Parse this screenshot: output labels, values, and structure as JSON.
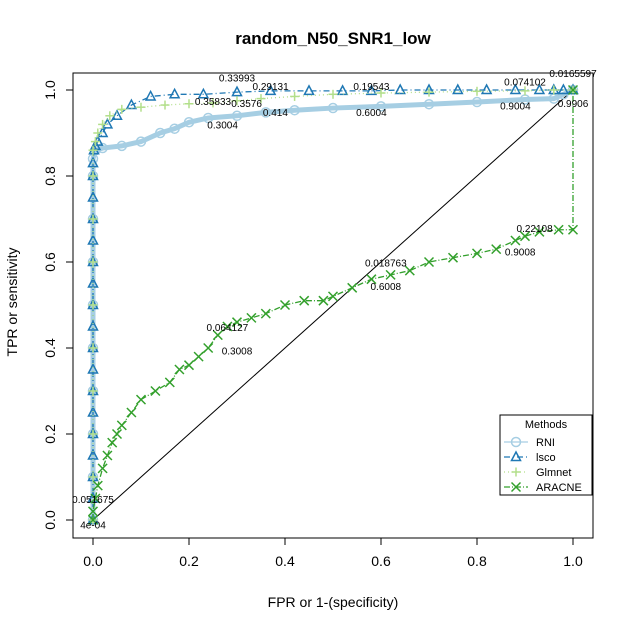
{
  "chart_data": {
    "type": "line",
    "title": "random_N50_SNR1_low",
    "xlabel": "FPR or 1-(specificity)",
    "ylabel": "TPR or sensitivity",
    "xlim": [
      0,
      1
    ],
    "ylim": [
      0,
      1
    ],
    "x_ticks": [
      0.0,
      0.2,
      0.4,
      0.6,
      0.8,
      1.0
    ],
    "y_ticks": [
      0.0,
      0.2,
      0.4,
      0.6,
      0.8,
      1.0
    ],
    "x_tick_labels": [
      "0.0",
      "0.2",
      "0.4",
      "0.6",
      "0.8",
      "1.0"
    ],
    "y_tick_labels": [
      "0.0",
      "0.2",
      "0.4",
      "0.6",
      "0.8",
      "1.0"
    ],
    "diagonal": true,
    "legend": {
      "title": "Methods",
      "position": "bottom-right",
      "entries": [
        "RNI",
        "lsco",
        "Glmnet",
        "ARACNE"
      ]
    },
    "series": [
      {
        "name": "RNI",
        "color": "#a6cee3",
        "marker": "circle",
        "dash": "solid",
        "points": [
          [
            0.0,
            0.0
          ],
          [
            0.0,
            0.1
          ],
          [
            0.0,
            0.2
          ],
          [
            0.0,
            0.3
          ],
          [
            0.0,
            0.4
          ],
          [
            0.0,
            0.5
          ],
          [
            0.0,
            0.6
          ],
          [
            0.0,
            0.7
          ],
          [
            0.0,
            0.8
          ],
          [
            0.0,
            0.84
          ],
          [
            0.005,
            0.86
          ],
          [
            0.02,
            0.865
          ],
          [
            0.06,
            0.87
          ],
          [
            0.1,
            0.88
          ],
          [
            0.14,
            0.9
          ],
          [
            0.17,
            0.91
          ],
          [
            0.2,
            0.925
          ],
          [
            0.24,
            0.935
          ],
          [
            0.3,
            0.94
          ],
          [
            0.36,
            0.948
          ],
          [
            0.42,
            0.953
          ],
          [
            0.5,
            0.958
          ],
          [
            0.6,
            0.962
          ],
          [
            0.7,
            0.967
          ],
          [
            0.8,
            0.972
          ],
          [
            0.9,
            0.978
          ],
          [
            0.96,
            0.98
          ],
          [
            0.98,
            0.99
          ],
          [
            1.0,
            1.0
          ]
        ]
      },
      {
        "name": "lsco",
        "color": "#1f78b4",
        "marker": "triangle",
        "dash": "6,3,1,3",
        "points": [
          [
            0.0,
            0.0
          ],
          [
            0.0,
            0.05
          ],
          [
            0.0,
            0.1
          ],
          [
            0.0,
            0.15
          ],
          [
            0.0,
            0.2
          ],
          [
            0.0,
            0.25
          ],
          [
            0.0,
            0.3
          ],
          [
            0.0,
            0.35
          ],
          [
            0.0,
            0.4
          ],
          [
            0.0,
            0.45
          ],
          [
            0.0,
            0.5
          ],
          [
            0.0,
            0.55
          ],
          [
            0.0,
            0.6
          ],
          [
            0.0,
            0.65
          ],
          [
            0.0,
            0.7
          ],
          [
            0.0,
            0.75
          ],
          [
            0.0,
            0.8
          ],
          [
            0.0,
            0.83
          ],
          [
            0.002,
            0.86
          ],
          [
            0.005,
            0.87
          ],
          [
            0.01,
            0.88
          ],
          [
            0.02,
            0.9
          ],
          [
            0.03,
            0.92
          ],
          [
            0.05,
            0.94
          ],
          [
            0.08,
            0.965
          ],
          [
            0.12,
            0.985
          ],
          [
            0.17,
            0.99
          ],
          [
            0.23,
            0.99
          ],
          [
            0.3,
            0.995
          ],
          [
            0.37,
            0.998
          ],
          [
            0.45,
            0.998
          ],
          [
            0.52,
            0.998
          ],
          [
            0.58,
            0.998
          ],
          [
            0.64,
            1.0
          ],
          [
            0.7,
            1.0
          ],
          [
            0.76,
            1.0
          ],
          [
            0.82,
            1.0
          ],
          [
            0.88,
            1.0
          ],
          [
            0.93,
            1.0
          ],
          [
            0.96,
            1.0
          ],
          [
            0.98,
            1.0
          ],
          [
            1.0,
            1.0
          ]
        ]
      },
      {
        "name": "Glmnet",
        "color": "#b2df8a",
        "marker": "plus",
        "dash": "1,3",
        "points": [
          [
            0.0,
            0.0
          ],
          [
            0.0,
            0.1
          ],
          [
            0.0,
            0.2
          ],
          [
            0.0,
            0.3
          ],
          [
            0.0,
            0.4
          ],
          [
            0.0,
            0.5
          ],
          [
            0.0,
            0.6
          ],
          [
            0.0,
            0.7
          ],
          [
            0.0,
            0.8
          ],
          [
            0.0,
            0.86
          ],
          [
            0.005,
            0.88
          ],
          [
            0.01,
            0.9
          ],
          [
            0.02,
            0.92
          ],
          [
            0.035,
            0.94
          ],
          [
            0.06,
            0.955
          ],
          [
            0.1,
            0.96
          ],
          [
            0.15,
            0.965
          ],
          [
            0.2,
            0.968
          ],
          [
            0.25,
            0.97
          ],
          [
            0.3,
            0.975
          ],
          [
            0.35,
            0.98
          ],
          [
            0.42,
            0.985
          ],
          [
            0.5,
            0.99
          ],
          [
            0.6,
            0.993
          ],
          [
            0.7,
            0.995
          ],
          [
            0.8,
            0.997
          ],
          [
            0.9,
            0.998
          ],
          [
            0.96,
            1.0
          ],
          [
            1.0,
            1.0
          ]
        ]
      },
      {
        "name": "ARACNE",
        "color": "#33a02c",
        "marker": "cross",
        "dash": "6,2,1,2",
        "points": [
          [
            0.0,
            0.0
          ],
          [
            0.0,
            0.02
          ],
          [
            0.005,
            0.05
          ],
          [
            0.01,
            0.08
          ],
          [
            0.02,
            0.12
          ],
          [
            0.03,
            0.15
          ],
          [
            0.04,
            0.18
          ],
          [
            0.05,
            0.2
          ],
          [
            0.06,
            0.22
          ],
          [
            0.08,
            0.25
          ],
          [
            0.1,
            0.28
          ],
          [
            0.13,
            0.3
          ],
          [
            0.16,
            0.32
          ],
          [
            0.18,
            0.35
          ],
          [
            0.2,
            0.36
          ],
          [
            0.22,
            0.38
          ],
          [
            0.24,
            0.4
          ],
          [
            0.26,
            0.43
          ],
          [
            0.28,
            0.45
          ],
          [
            0.3,
            0.46
          ],
          [
            0.33,
            0.47
          ],
          [
            0.36,
            0.48
          ],
          [
            0.4,
            0.5
          ],
          [
            0.44,
            0.51
          ],
          [
            0.48,
            0.51
          ],
          [
            0.5,
            0.52
          ],
          [
            0.54,
            0.54
          ],
          [
            0.58,
            0.56
          ],
          [
            0.62,
            0.57
          ],
          [
            0.66,
            0.58
          ],
          [
            0.7,
            0.6
          ],
          [
            0.75,
            0.61
          ],
          [
            0.8,
            0.62
          ],
          [
            0.84,
            0.63
          ],
          [
            0.88,
            0.65
          ],
          [
            0.9,
            0.66
          ],
          [
            0.93,
            0.67
          ],
          [
            0.97,
            0.675
          ],
          [
            1.0,
            0.675
          ],
          [
            1.0,
            1.0
          ]
        ]
      }
    ],
    "annotations": [
      {
        "text": "0.33993",
        "x": 0.3,
        "y": 1.02
      },
      {
        "text": "0.29131",
        "x": 0.37,
        "y": 1.0
      },
      {
        "text": "0.19543",
        "x": 0.58,
        "y": 1.0
      },
      {
        "text": "0.074102",
        "x": 0.9,
        "y": 1.01
      },
      {
        "text": "0.0165597",
        "x": 1.0,
        "y": 1.03
      },
      {
        "text": "0.35833",
        "x": 0.25,
        "y": 0.965
      },
      {
        "text": "0.3576",
        "x": 0.32,
        "y": 0.96
      },
      {
        "text": "0.414",
        "x": 0.38,
        "y": 0.94
      },
      {
        "text": "0.3004",
        "x": 0.27,
        "y": 0.91
      },
      {
        "text": "0.6004",
        "x": 0.58,
        "y": 0.94
      },
      {
        "text": "0.9004",
        "x": 0.88,
        "y": 0.955
      },
      {
        "text": "0.9906",
        "x": 1.0,
        "y": 0.96
      },
      {
        "text": "0.22108",
        "x": 0.92,
        "y": 0.67
      },
      {
        "text": "0.9008",
        "x": 0.89,
        "y": 0.615
      },
      {
        "text": "0.018763",
        "x": 0.61,
        "y": 0.59
      },
      {
        "text": "0.6008",
        "x": 0.61,
        "y": 0.535
      },
      {
        "text": "0.064127",
        "x": 0.28,
        "y": 0.44
      },
      {
        "text": "0.3008",
        "x": 0.3,
        "y": 0.385
      },
      {
        "text": "0.051675",
        "x": 0.0,
        "y": 0.04
      },
      {
        "text": "4e-04",
        "x": 0.0,
        "y": -0.02
      }
    ]
  }
}
